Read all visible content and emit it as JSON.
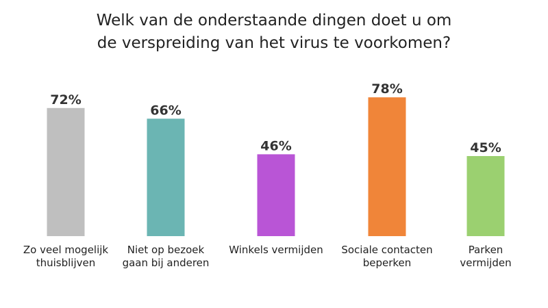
{
  "title_lines": [
    "Welk van de onderstaande dingen doet u om",
    "de verspreiding van het virus te voorkomen?"
  ],
  "chart_data": {
    "type": "bar",
    "title": "Welk van de onderstaande dingen doet u om de verspreiding van het virus te voorkomen?",
    "categories": [
      [
        "Zo veel mogelijk",
        "thuisblijven"
      ],
      [
        "Niet op bezoek",
        "gaan bij anderen"
      ],
      [
        "Winkels vermijden"
      ],
      [
        "Sociale contacten",
        "beperken"
      ],
      [
        "Parken",
        "vermijden"
      ]
    ],
    "values": [
      72,
      66,
      46,
      78,
      45
    ],
    "value_labels": [
      "72%",
      "66%",
      "46%",
      "78%",
      "45%"
    ],
    "colors": [
      "#bfbfbf",
      "#6bb5b3",
      "#b955d6",
      "#f08539",
      "#9bd070"
    ],
    "ylim": [
      0,
      100
    ],
    "grid": false,
    "legend": "none"
  }
}
